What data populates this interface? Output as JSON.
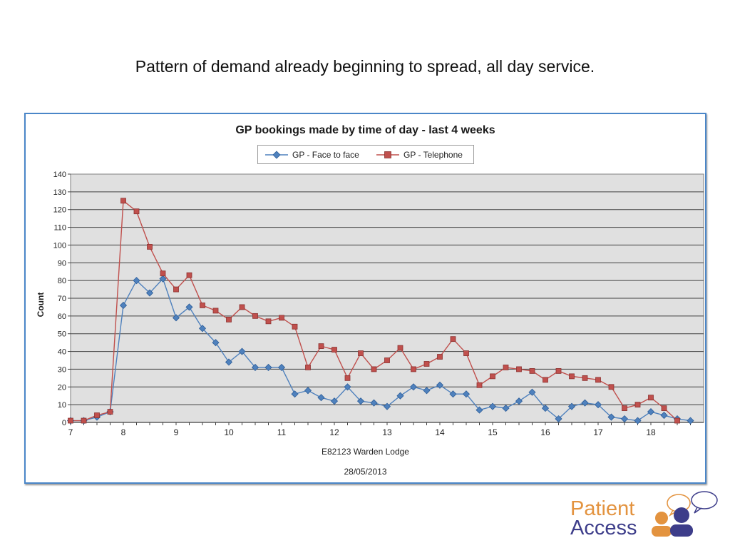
{
  "slide": {
    "title": "Pattern of demand already beginning to spread, all day service."
  },
  "logo": {
    "line1": "Patient",
    "line2": "Access",
    "colors": {
      "orange": "#e3933f",
      "purple": "#3d3d8a"
    }
  },
  "chart_data": {
    "type": "line",
    "title": "GP bookings made by time of day - last 4 weeks",
    "xlabel": "E82123 Warden Lodge",
    "subtitle": "28/05/2013",
    "ylabel": "Count",
    "xlim": [
      7,
      18.75
    ],
    "ylim": [
      0,
      140
    ],
    "ytick_step": 10,
    "xticks": [
      7,
      8,
      9,
      10,
      11,
      12,
      13,
      14,
      15,
      16,
      17,
      18
    ],
    "grid": true,
    "plot_background": "#e0e0e0",
    "legend_position": "top-center",
    "x": [
      7,
      7.25,
      7.5,
      7.75,
      8,
      8.25,
      8.5,
      8.75,
      9,
      9.25,
      9.5,
      9.75,
      10,
      10.25,
      10.5,
      10.75,
      11,
      11.25,
      11.5,
      11.75,
      12,
      12.25,
      12.5,
      12.75,
      13,
      13.25,
      13.5,
      13.75,
      14,
      14.25,
      14.5,
      14.75,
      15,
      15.25,
      15.5,
      15.75,
      16,
      16.25,
      16.5,
      16.75,
      17,
      17.25,
      17.5,
      17.75,
      18,
      18.25,
      18.5,
      18.75
    ],
    "series": [
      {
        "name": "GP - Face to face",
        "color": "#4f81bd",
        "marker": "diamond",
        "values": [
          1,
          1,
          3,
          6,
          66,
          80,
          73,
          81,
          59,
          65,
          53,
          45,
          34,
          40,
          31,
          31,
          31,
          16,
          18,
          14,
          12,
          20,
          12,
          11,
          9,
          15,
          20,
          18,
          21,
          16,
          16,
          7,
          9,
          8,
          12,
          17,
          8,
          2,
          9,
          11,
          10,
          3,
          2,
          1,
          6,
          4,
          2,
          1
        ]
      },
      {
        "name": "GP - Telephone",
        "color": "#c0504d",
        "marker": "square",
        "values": [
          1,
          1,
          4,
          6,
          125,
          119,
          99,
          84,
          75,
          83,
          66,
          63,
          58,
          65,
          60,
          57,
          59,
          54,
          31,
          43,
          41,
          25,
          39,
          30,
          35,
          42,
          30,
          33,
          37,
          47,
          39,
          21,
          26,
          31,
          30,
          29,
          24,
          29,
          26,
          25,
          24,
          20,
          8,
          10,
          14,
          8,
          1,
          null
        ]
      }
    ]
  }
}
